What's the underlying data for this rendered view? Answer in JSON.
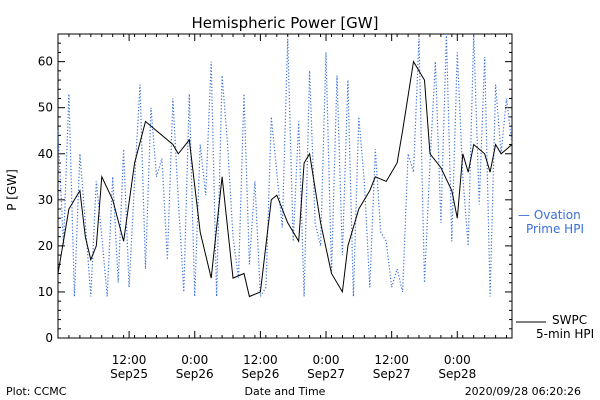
{
  "chart_data": {
    "type": "line",
    "title": "Hemispheric Power [GW]",
    "xlabel": "Date and Time",
    "ylabel": "P [GW]",
    "xlim": [
      "2020-09-24T23:00",
      "2020-09-28T10:00"
    ],
    "ylim": [
      0,
      66
    ],
    "y_ticks": [
      0,
      10,
      20,
      30,
      40,
      50,
      60
    ],
    "x_ticks": [
      {
        "t": "2020-09-25T12:00",
        "time": "12:00",
        "date": "Sep25"
      },
      {
        "t": "2020-09-26T00:00",
        "time": "0:00",
        "date": "Sep26"
      },
      {
        "t": "2020-09-26T12:00",
        "time": "12:00",
        "date": "Sep26"
      },
      {
        "t": "2020-09-27T00:00",
        "time": "0:00",
        "date": "Sep27"
      },
      {
        "t": "2020-09-27T12:00",
        "time": "12:00",
        "date": "Sep27"
      },
      {
        "t": "2020-09-28T00:00",
        "time": "0:00",
        "date": "Sep28"
      }
    ],
    "series": [
      {
        "name": "SWPC 5-min HPI",
        "color": "#000000",
        "style": "solid",
        "x": [
          "2020-09-24T23:00",
          "2020-09-25T01:00",
          "2020-09-25T03:00",
          "2020-09-25T04:00",
          "2020-09-25T05:00",
          "2020-09-25T06:00",
          "2020-09-25T07:00",
          "2020-09-25T09:00",
          "2020-09-25T11:00",
          "2020-09-25T13:00",
          "2020-09-25T15:00",
          "2020-09-25T17:00",
          "2020-09-25T18:00",
          "2020-09-25T20:00",
          "2020-09-25T21:00",
          "2020-09-25T23:00",
          "2020-09-26T01:00",
          "2020-09-26T03:00",
          "2020-09-26T05:00",
          "2020-09-26T07:00",
          "2020-09-26T09:00",
          "2020-09-26T10:00",
          "2020-09-26T12:00",
          "2020-09-26T14:00",
          "2020-09-26T15:00",
          "2020-09-26T17:00",
          "2020-09-26T19:00",
          "2020-09-26T20:00",
          "2020-09-26T21:00",
          "2020-09-26T23:00",
          "2020-09-27T01:00",
          "2020-09-27T03:00",
          "2020-09-27T04:00",
          "2020-09-27T06:00",
          "2020-09-27T08:00",
          "2020-09-27T09:00",
          "2020-09-27T11:00",
          "2020-09-27T13:00",
          "2020-09-27T14:00",
          "2020-09-27T16:00",
          "2020-09-27T18:00",
          "2020-09-27T19:00",
          "2020-09-27T21:00",
          "2020-09-27T23:00",
          "2020-09-28T00:00",
          "2020-09-28T01:00",
          "2020-09-28T02:00",
          "2020-09-28T03:00",
          "2020-09-28T05:00",
          "2020-09-28T06:00",
          "2020-09-28T07:00",
          "2020-09-28T08:00",
          "2020-09-28T09:00",
          "2020-09-28T10:00"
        ],
        "y": [
          14,
          28,
          32,
          22,
          17,
          20,
          35,
          30,
          21,
          38,
          47,
          45,
          44,
          42,
          40,
          43,
          23,
          13,
          35,
          13,
          14,
          9,
          10,
          30,
          31,
          25,
          21,
          38,
          40,
          25,
          14,
          10,
          20,
          28,
          32,
          35,
          34,
          38,
          45,
          60,
          56,
          40,
          37,
          32,
          26,
          40,
          36,
          42,
          40,
          36,
          42,
          40,
          41,
          42
        ]
      },
      {
        "name": "Ovation Prime HPI",
        "color": "#3a6fd8",
        "style": "dotted",
        "x": [
          "2020-09-24T23:00",
          "2020-09-25T00:00",
          "2020-09-25T01:00",
          "2020-09-25T02:00",
          "2020-09-25T03:00",
          "2020-09-25T04:00",
          "2020-09-25T05:00",
          "2020-09-25T06:00",
          "2020-09-25T07:00",
          "2020-09-25T08:00",
          "2020-09-25T09:00",
          "2020-09-25T10:00",
          "2020-09-25T11:00",
          "2020-09-25T12:00",
          "2020-09-25T13:00",
          "2020-09-25T14:00",
          "2020-09-25T15:00",
          "2020-09-25T16:00",
          "2020-09-25T17:00",
          "2020-09-25T18:00",
          "2020-09-25T19:00",
          "2020-09-25T20:00",
          "2020-09-25T21:00",
          "2020-09-25T22:00",
          "2020-09-25T23:00",
          "2020-09-26T00:00",
          "2020-09-26T01:00",
          "2020-09-26T02:00",
          "2020-09-26T03:00",
          "2020-09-26T04:00",
          "2020-09-26T05:00",
          "2020-09-26T06:00",
          "2020-09-26T07:00",
          "2020-09-26T08:00",
          "2020-09-26T09:00",
          "2020-09-26T10:00",
          "2020-09-26T11:00",
          "2020-09-26T12:00",
          "2020-09-26T13:00",
          "2020-09-26T14:00",
          "2020-09-26T15:00",
          "2020-09-26T16:00",
          "2020-09-26T17:00",
          "2020-09-26T18:00",
          "2020-09-26T19:00",
          "2020-09-26T20:00",
          "2020-09-26T21:00",
          "2020-09-26T22:00",
          "2020-09-26T23:00",
          "2020-09-27T00:00",
          "2020-09-27T01:00",
          "2020-09-27T02:00",
          "2020-09-27T03:00",
          "2020-09-27T04:00",
          "2020-09-27T05:00",
          "2020-09-27T06:00",
          "2020-09-27T07:00",
          "2020-09-27T08:00",
          "2020-09-27T09:00",
          "2020-09-27T10:00",
          "2020-09-27T11:00",
          "2020-09-27T12:00",
          "2020-09-27T13:00",
          "2020-09-27T14:00",
          "2020-09-27T15:00",
          "2020-09-27T16:00",
          "2020-09-27T17:00",
          "2020-09-27T18:00",
          "2020-09-27T19:00",
          "2020-09-27T20:00",
          "2020-09-27T21:00",
          "2020-09-27T22:00",
          "2020-09-27T23:00",
          "2020-09-28T00:00",
          "2020-09-28T01:00",
          "2020-09-28T02:00",
          "2020-09-28T03:00",
          "2020-09-28T04:00",
          "2020-09-28T05:00",
          "2020-09-28T06:00",
          "2020-09-28T07:00",
          "2020-09-28T08:00",
          "2020-09-28T09:00",
          "2020-09-28T10:00"
        ],
        "y": [
          45,
          20,
          53,
          9,
          40,
          25,
          9,
          34,
          22,
          9,
          35,
          12,
          41,
          11,
          34,
          55,
          15,
          50,
          35,
          39,
          17,
          52,
          30,
          10,
          53,
          9,
          42,
          31,
          60,
          9,
          57,
          42,
          22,
          13,
          53,
          16,
          34,
          9,
          11,
          48,
          36,
          24,
          65,
          21,
          47,
          9,
          58,
          25,
          20,
          62,
          14,
          57,
          18,
          56,
          9,
          48,
          34,
          11,
          41,
          23,
          21,
          11,
          15,
          10,
          40,
          36,
          65,
          12,
          38,
          60,
          25,
          66,
          21,
          62,
          35,
          20,
          66,
          29,
          61,
          9,
          55,
          40,
          52,
          42
        ]
      }
    ],
    "legend": [
      {
        "series": "Ovation Prime HPI",
        "line1": "— Ovation",
        "line2": "Prime HPI",
        "position": "right-middle"
      },
      {
        "series": "SWPC 5-min HPI",
        "line1": "SWPC",
        "line2": "5-min HPI",
        "position": "right-bottom"
      }
    ],
    "grid": false
  },
  "footer": {
    "left": "Plot: CCMC",
    "center": "Date and Time",
    "right": "2020/09/28 06:20:26"
  }
}
